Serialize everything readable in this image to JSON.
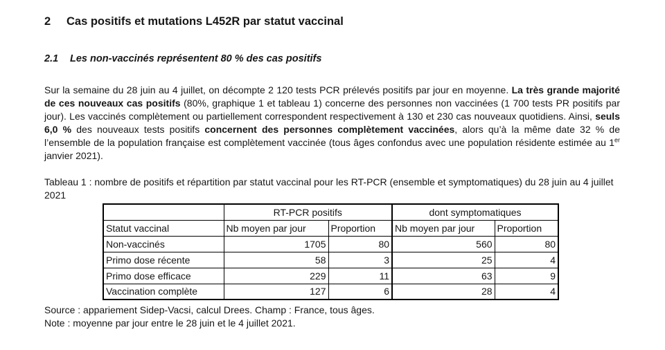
{
  "page": {
    "heading": {
      "number": "2",
      "title": "Cas positifs et mutations L452R par statut vaccinal"
    },
    "subheading": {
      "number": "2.1",
      "title": "Les non-vaccinés représentent 80 % des cas positifs"
    },
    "paragraph": {
      "segments": [
        {
          "text": "Sur la semaine du 28 juin au 4 juillet, on décompte 2 120 tests PCR prélevés positifs par jour en moyenne. ",
          "bold": false
        },
        {
          "text": "La très grande majorité de ces nouveaux cas positifs",
          "bold": true
        },
        {
          "text": " (80%, graphique 1 et tableau 1) concerne des personnes non vaccinées (1 700 tests PR positifs par jour). Les vaccinés complètement ou partiellement correspondent respectivement à 130 et 230 cas nouveaux quotidiens. Ainsi, ",
          "bold": false
        },
        {
          "text": "seuls 6,0 %",
          "bold": true
        },
        {
          "text": " des nouveaux tests positifs ",
          "bold": false
        },
        {
          "text": "concernent des personnes complètement vaccinées",
          "bold": true
        },
        {
          "text": ", alors qu’à la même date 32 % de l’ensemble de la population française est complètement vaccinée (tous âges confondus avec une population résidente estimée au 1",
          "bold": false
        },
        {
          "text": "er",
          "bold": false,
          "sup": true
        },
        {
          "text": " janvier 2021).",
          "bold": false
        }
      ]
    },
    "table": {
      "caption": "Tableau 1 : nombre de positifs et répartition par statut vaccinal pour les RT-PCR (ensemble et symptomatiques) du 28 juin au 4 juillet 2021",
      "group_headers": [
        {
          "label": "",
          "colspan": 1
        },
        {
          "label": "RT-PCR positifs",
          "colspan": 2
        },
        {
          "label": "dont symptomatiques",
          "colspan": 2
        }
      ],
      "column_headers": [
        "Statut vaccinal",
        "Nb moyen par jour",
        "Proportion",
        "Nb moyen par jour",
        "Proportion"
      ],
      "rows": [
        {
          "label": "Non-vaccinés",
          "values": [
            "1705",
            "80",
            "560",
            "80"
          ]
        },
        {
          "label": "Primo dose récente",
          "values": [
            "58",
            "3",
            "25",
            "4"
          ]
        },
        {
          "label": "Primo dose efficace",
          "values": [
            "229",
            "11",
            "63",
            "9"
          ]
        },
        {
          "label": "Vaccination complète",
          "values": [
            "127",
            "6",
            "28",
            "4"
          ]
        }
      ]
    },
    "footer": {
      "source": "Source : appariement Sidep-Vacsi, calcul Drees. Champ : France, tous âges.",
      "note": "Note : moyenne par jour entre le 28 juin et le 4 juillet 2021."
    },
    "colors": {
      "text": "#161616",
      "border": "#000000",
      "background": "#ffffff"
    }
  }
}
